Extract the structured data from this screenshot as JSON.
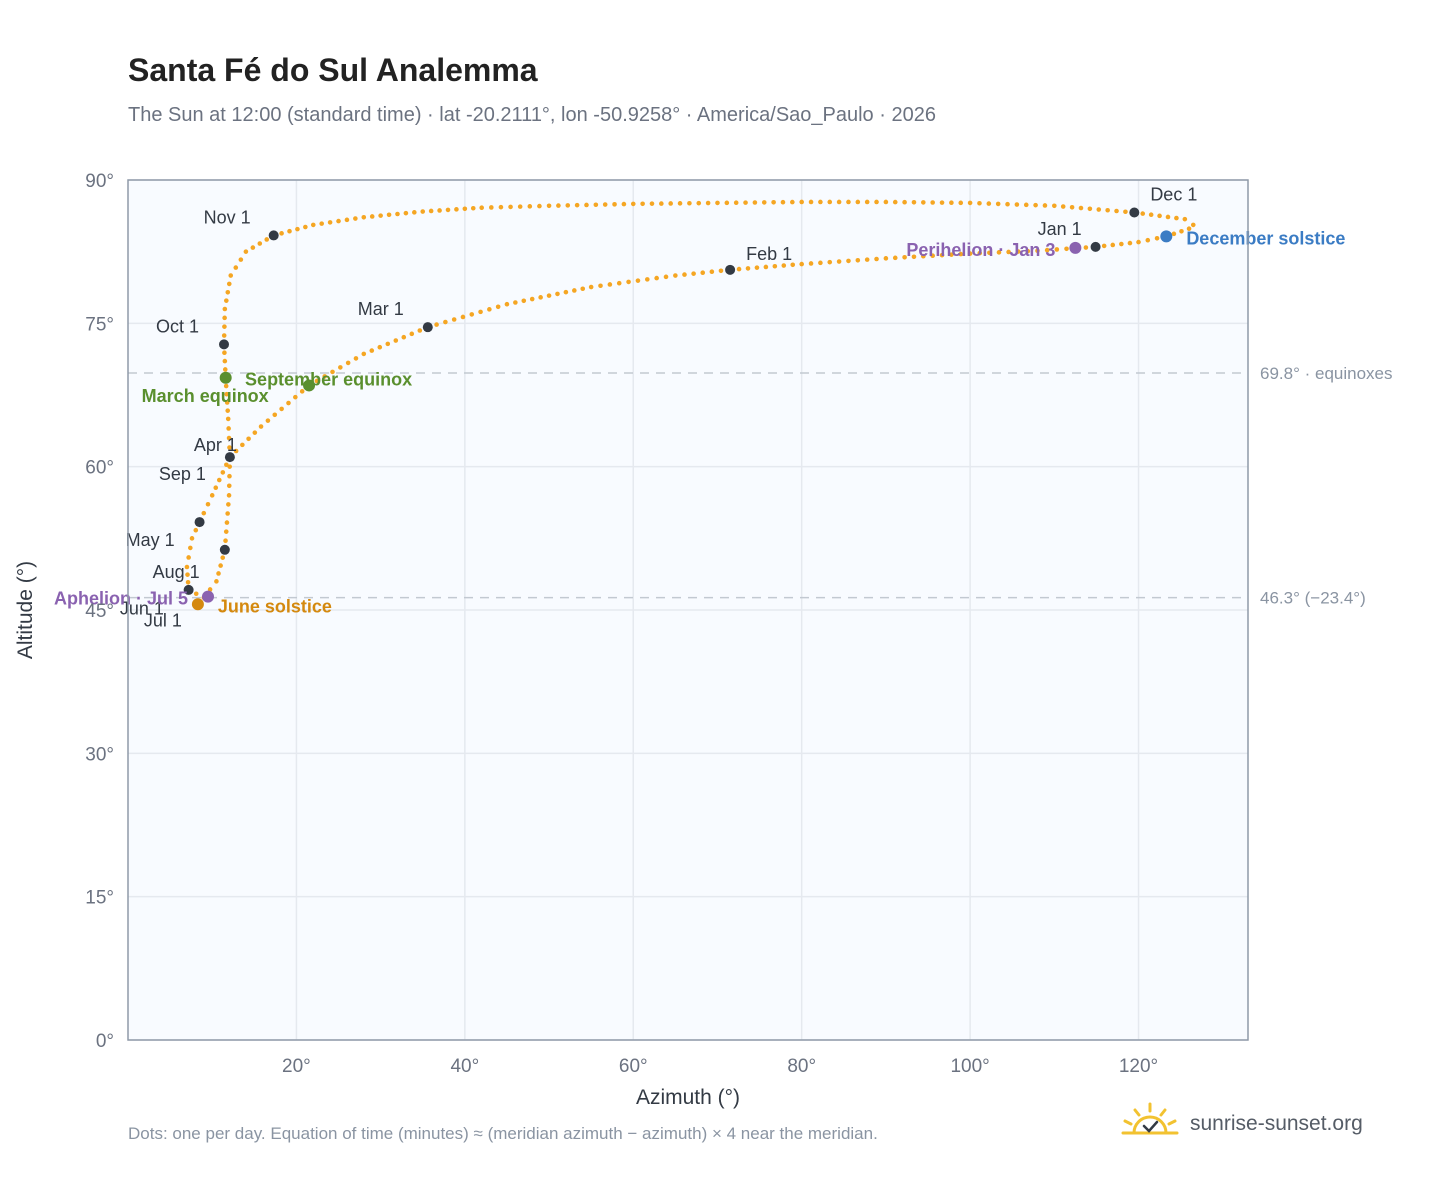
{
  "title": "Santa Fé do Sul Analemma",
  "subtitle": "The Sun at 12:00 (standard time) · lat -20.2111°, lon -50.9258° · America/Sao_Paulo · 2026",
  "footer_note": "Dots: one per day. Equation of time (minutes) ≈ (meridian azimuth − azimuth) × 4 near the meridian.",
  "brand": {
    "name": "sunrise-sunset.org",
    "icon": "sun-logo-icon"
  },
  "colors": {
    "curve": "#f5a623",
    "month_dot": "#333a44",
    "equinox": "#5a8f2e",
    "solstice_june": "#d4890f",
    "solstice_december": "#3b7cc4",
    "aphelion_perihelion": "#8a62b0",
    "plot_bg": "#f8fbff",
    "grid": "#e5e9ef",
    "frame": "#8f9aa8",
    "ref_line": "#c2c9d1"
  },
  "chart_data": {
    "type": "scatter",
    "title": "Santa Fé do Sul Analemma",
    "xlabel": "Azimuth (°)",
    "ylabel": "Altitude (°)",
    "xlim": [
      0,
      133
    ],
    "ylim": [
      0,
      90
    ],
    "xticks": [
      20,
      40,
      60,
      80,
      100,
      120
    ],
    "xtick_labels": [
      "20°",
      "40°",
      "60°",
      "80°",
      "100°",
      "120°"
    ],
    "yticks": [
      0,
      15,
      30,
      45,
      60,
      75,
      90
    ],
    "ytick_labels": [
      "0°",
      "15°",
      "30°",
      "45°",
      "60°",
      "75°",
      "90°"
    ],
    "grid": true,
    "reference_lines": [
      {
        "y": 69.8,
        "label": "69.8° · equinoxes"
      },
      {
        "y": 46.3,
        "label": "46.3° (−23.4°)"
      }
    ],
    "months": [
      {
        "label": "Jan 1",
        "x": 114.9,
        "y": 83.0
      },
      {
        "label": "Feb 1",
        "x": 71.5,
        "y": 80.6
      },
      {
        "label": "Mar 1",
        "x": 35.6,
        "y": 74.6
      },
      {
        "label": "Apr 1",
        "x": 12.1,
        "y": 61.0
      },
      {
        "label": "May 1",
        "x": 8.5,
        "y": 54.2
      },
      {
        "label": "Jun 1",
        "x": 8.3,
        "y": 45.6
      },
      {
        "label": "Jul 1",
        "x": 8.3,
        "y": 45.6
      },
      {
        "label": "Aug 1",
        "x": 7.2,
        "y": 47.1
      },
      {
        "label": "Sep 1",
        "x": 11.5,
        "y": 51.3
      },
      {
        "label": "Oct 1",
        "x": 11.4,
        "y": 72.8
      },
      {
        "label": "Nov 1",
        "x": 17.3,
        "y": 84.2
      },
      {
        "label": "Dec 1",
        "x": 119.5,
        "y": 86.6
      }
    ],
    "events": [
      {
        "label": "March equinox",
        "x": 11.6,
        "y": 69.3,
        "kind": "equinox"
      },
      {
        "label": "September equinox",
        "x": 21.5,
        "y": 68.5,
        "kind": "equinox"
      },
      {
        "label": "June solstice",
        "x": 8.3,
        "y": 45.6,
        "kind": "solstice_june"
      },
      {
        "label": "December solstice",
        "x": 123.3,
        "y": 84.1,
        "kind": "solstice_december"
      },
      {
        "label": "Aphelion · Jul 5",
        "x": 9.5,
        "y": 46.4,
        "kind": "aphelion_perihelion"
      },
      {
        "label": "Perihelion · Jan 3",
        "x": 112.5,
        "y": 82.9,
        "kind": "aphelion_perihelion"
      }
    ],
    "path_keypoints": [
      {
        "x": 114.9,
        "y": 83.0
      },
      {
        "x": 120.0,
        "y": 83.5
      },
      {
        "x": 123.3,
        "y": 84.1
      },
      {
        "x": 126.0,
        "y": 84.9
      },
      {
        "x": 126.5,
        "y": 85.3
      },
      {
        "x": 125.5,
        "y": 85.9
      },
      {
        "x": 119.5,
        "y": 86.6
      },
      {
        "x": 110.0,
        "y": 87.3
      },
      {
        "x": 100.0,
        "y": 87.6
      },
      {
        "x": 90.0,
        "y": 87.7
      },
      {
        "x": 80.0,
        "y": 87.7
      },
      {
        "x": 70.0,
        "y": 87.6
      },
      {
        "x": 60.0,
        "y": 87.5
      },
      {
        "x": 50.0,
        "y": 87.3
      },
      {
        "x": 42.0,
        "y": 87.1
      },
      {
        "x": 35.0,
        "y": 86.7
      },
      {
        "x": 28.0,
        "y": 86.1
      },
      {
        "x": 22.0,
        "y": 85.3
      },
      {
        "x": 17.3,
        "y": 84.2
      },
      {
        "x": 14.0,
        "y": 82.5
      },
      {
        "x": 12.2,
        "y": 80.0
      },
      {
        "x": 11.5,
        "y": 76.5
      },
      {
        "x": 11.4,
        "y": 72.8
      },
      {
        "x": 11.6,
        "y": 69.3
      },
      {
        "x": 11.9,
        "y": 65.0
      },
      {
        "x": 12.1,
        "y": 61.0
      },
      {
        "x": 12.0,
        "y": 57.0
      },
      {
        "x": 11.5,
        "y": 51.3
      },
      {
        "x": 10.5,
        "y": 48.0
      },
      {
        "x": 9.0,
        "y": 46.3
      },
      {
        "x": 7.2,
        "y": 47.1
      },
      {
        "x": 7.0,
        "y": 49.5
      },
      {
        "x": 7.6,
        "y": 52.5
      },
      {
        "x": 8.5,
        "y": 54.2
      },
      {
        "x": 10.0,
        "y": 57.0
      },
      {
        "x": 12.1,
        "y": 61.0
      },
      {
        "x": 15.8,
        "y": 64.2
      },
      {
        "x": 21.5,
        "y": 68.5
      },
      {
        "x": 28.0,
        "y": 71.8
      },
      {
        "x": 35.6,
        "y": 74.6
      },
      {
        "x": 45.0,
        "y": 77.0
      },
      {
        "x": 55.0,
        "y": 78.8
      },
      {
        "x": 65.0,
        "y": 80.0
      },
      {
        "x": 71.5,
        "y": 80.6
      },
      {
        "x": 80.0,
        "y": 81.2
      },
      {
        "x": 90.0,
        "y": 81.8
      },
      {
        "x": 100.0,
        "y": 82.3
      },
      {
        "x": 108.0,
        "y": 82.6
      },
      {
        "x": 114.9,
        "y": 83.0
      }
    ]
  }
}
